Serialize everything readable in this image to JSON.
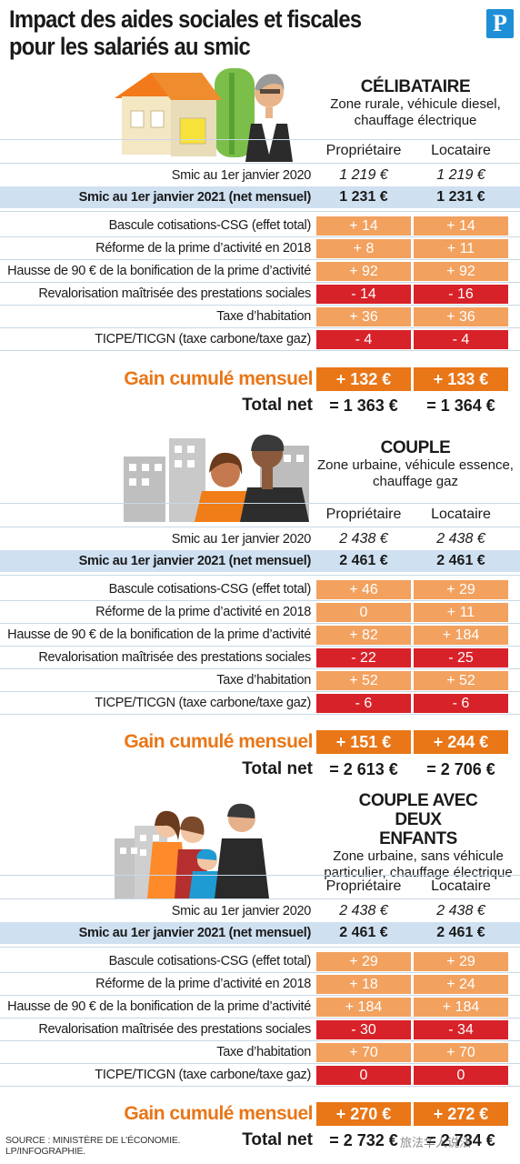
{
  "title": "Impact des aides sociales et fiscales pour les salariés au smic",
  "logo_letter": "P",
  "col_headers": {
    "owner": "Propriétaire",
    "renter": "Locataire"
  },
  "row_labels": {
    "smic2020": "Smic au 1er janvier 2020",
    "smic2021": "Smic au 1er janvier 2021 (net mensuel)",
    "csg": "Bascule cotisations-CSG (effet total)",
    "prime": "Réforme de la prime d’activité en 2018",
    "bonif": "Hausse de 90 € de la bonification de la prime d’activité",
    "prestations": "Revalorisation maîtrisée des prestations sociales",
    "habitation": "Taxe d’habitation",
    "ticpe": "TICPE/TICGN (taxe carbone/taxe gaz)"
  },
  "gain_label": "Gain cumulé mensuel",
  "total_label": "Total net",
  "sections": [
    {
      "name": "CÉLIBATAIRE",
      "desc": "Zone rurale, véhicule diesel, chauffage électrique",
      "smic2020": [
        "1 219 €",
        "1 219 €"
      ],
      "smic2021": [
        "1 231 €",
        "1 231 €"
      ],
      "changes": [
        [
          "+ 14",
          "+ 14"
        ],
        [
          "+ 8",
          "+ 11"
        ],
        [
          "+ 92",
          "+ 92"
        ],
        [
          "- 14",
          "- 16"
        ],
        [
          "+ 36",
          "+ 36"
        ],
        [
          "- 4",
          "- 4"
        ]
      ],
      "gain": [
        "+ 132 €",
        "+ 133 €"
      ],
      "total": [
        "= 1 363 €",
        "= 1 364 €"
      ]
    },
    {
      "name": "COUPLE",
      "desc": "Zone urbaine, véhicule essence, chauffage gaz",
      "smic2020": [
        "2 438 €",
        "2 438 €"
      ],
      "smic2021": [
        "2 461 €",
        "2 461 €"
      ],
      "changes": [
        [
          "+ 46",
          "+ 29"
        ],
        [
          "0",
          "+ 11"
        ],
        [
          "+ 82",
          "+ 184"
        ],
        [
          "- 22",
          "- 25"
        ],
        [
          "+ 52",
          "+ 52"
        ],
        [
          "- 6",
          "- 6"
        ]
      ],
      "gain": [
        "+ 151 €",
        "+ 244 €"
      ],
      "total": [
        "= 2 613 €",
        "= 2 706 €"
      ]
    },
    {
      "name": "COUPLE AVEC DEUX ENFANTS",
      "desc": "Zone urbaine, sans véhicule particulier, chauffage électrique",
      "smic2020": [
        "2 438 €",
        "2 438 €"
      ],
      "smic2021": [
        "2 461 €",
        "2 461 €"
      ],
      "changes": [
        [
          "+ 29",
          "+ 29"
        ],
        [
          "+ 18",
          "+ 24"
        ],
        [
          "+ 184",
          "+ 184"
        ],
        [
          "- 30",
          "- 34"
        ],
        [
          "+ 70",
          "+ 70"
        ],
        [
          "0",
          "0"
        ]
      ],
      "gain": [
        "+ 270 €",
        "+ 272 €"
      ],
      "total": [
        "= 2 732 €",
        "= 2 734 €"
      ]
    }
  ],
  "change_colors": {
    "positive": "#f2a15f",
    "negative": "#d8222a",
    "accent": "#e97617",
    "smic_band": "#cfe0f1"
  },
  "source": "SOURCE : MINISTÈRE DE L’ÉCONOMIE. LP/INFOGRAPHIE.",
  "watermark": "旅法华人说法"
}
